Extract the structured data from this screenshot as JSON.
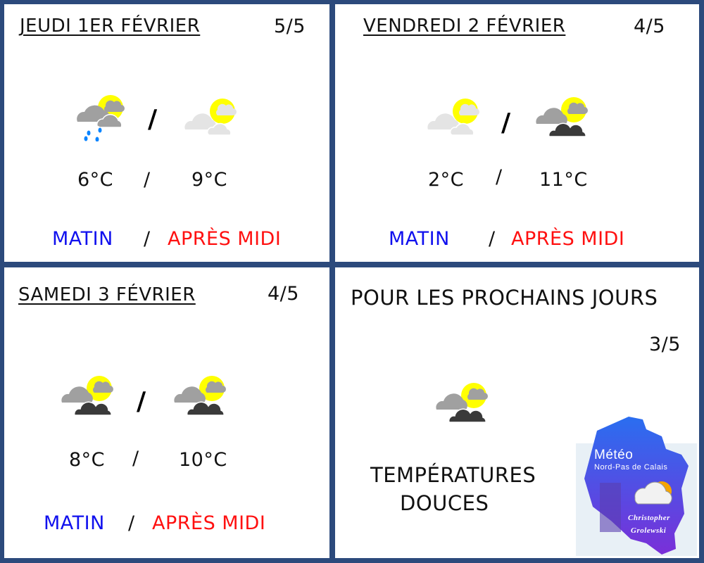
{
  "colors": {
    "border": "#2c4a7c",
    "morning": "#1010ee",
    "afternoon": "#ff1010"
  },
  "days": [
    {
      "title": "JEUDI 1ER FÉVRIER",
      "rating": "5/5",
      "morning_icon": "rain-sun-cloud-icon",
      "afternoon_icon": "pale-sun-cloud-icon",
      "morning_temp": "6°C",
      "afternoon_temp": "9°C",
      "sep": "/",
      "morning_label": "MATIN",
      "afternoon_label": "APRÈS MIDI"
    },
    {
      "title": "VENDREDI 2 FÉVRIER",
      "rating": "4/5",
      "morning_icon": "pale-sun-cloud-icon",
      "afternoon_icon": "dark-sun-cloud-icon",
      "morning_temp": "2°C",
      "afternoon_temp": "11°C",
      "sep": "/",
      "morning_label": "MATIN",
      "afternoon_label": "APRÈS MIDI"
    },
    {
      "title": "SAMEDI 3 FÉVRIER",
      "rating": "4/5",
      "morning_icon": "dark-sun-cloud-icon",
      "afternoon_icon": "dark-sun-cloud-icon",
      "morning_temp": "8°C",
      "afternoon_temp": "10°C",
      "sep": "/",
      "morning_label": "MATIN",
      "afternoon_label": "APRÈS MIDI"
    }
  ],
  "outlook": {
    "title": "POUR LES PROCHAINS JOURS",
    "rating": "3/5",
    "icon": "dark-sun-cloud-icon",
    "line1": "TEMPÉRATURES",
    "line2": "DOUCES"
  },
  "logo": {
    "title": "Météo",
    "subtitle": "Nord-Pas de Calais",
    "author_first": "Christopher",
    "author_last": "Grolewski"
  }
}
